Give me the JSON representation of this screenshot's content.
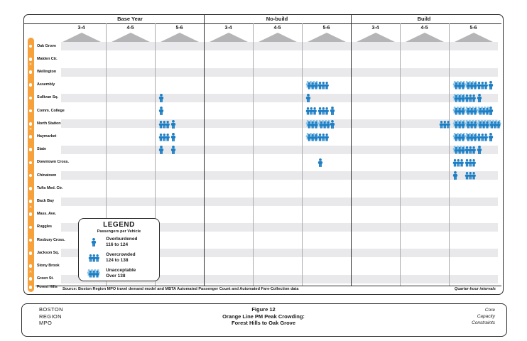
{
  "header": {
    "sections": [
      "Base Year",
      "No-build",
      "Build"
    ],
    "intervals": [
      "3-4",
      "4-5",
      "5-6"
    ]
  },
  "stations": [
    {
      "name": "Oak Grove",
      "commuter_rail_transfer": false
    },
    {
      "name": "Malden Ctr.",
      "commuter_rail_transfer": true
    },
    {
      "name": "Wellington",
      "commuter_rail_transfer": false
    },
    {
      "name": "Assembly",
      "commuter_rail_transfer": false
    },
    {
      "name": "Sullivan Sq.",
      "commuter_rail_transfer": false
    },
    {
      "name": "Comm. College",
      "commuter_rail_transfer": false
    },
    {
      "name": "North Station",
      "commuter_rail_transfer": true
    },
    {
      "name": "Haymarket",
      "commuter_rail_transfer": false
    },
    {
      "name": "State",
      "commuter_rail_transfer": false
    },
    {
      "name": "Downtown Cross.",
      "commuter_rail_transfer": false
    },
    {
      "name": "Chinatown",
      "commuter_rail_transfer": false
    },
    {
      "name": "Tufts Med. Ctr.",
      "commuter_rail_transfer": false
    },
    {
      "name": "Back Bay",
      "commuter_rail_transfer": true
    },
    {
      "name": "Mass. Ave.",
      "commuter_rail_transfer": false
    },
    {
      "name": "Ruggles",
      "commuter_rail_transfer": false
    },
    {
      "name": "Roxbury Cross.",
      "commuter_rail_transfer": false
    },
    {
      "name": "Jackson Sq.",
      "commuter_rail_transfer": false
    },
    {
      "name": "Stony Brook",
      "commuter_rail_transfer": true
    },
    {
      "name": "Green St.",
      "commuter_rail_transfer": false
    },
    {
      "name": "Forest Hills",
      "commuter_rail_transfer": false
    }
  ],
  "legend": {
    "title": "LEGEND",
    "subtitle": "Passengers per Vehicle",
    "items": [
      {
        "icon": "overburdened-icon",
        "code": "O",
        "label": "Overburdened",
        "range": "116 to 124"
      },
      {
        "icon": "overcrowded-icon",
        "code": "C",
        "label": "Overcrowded",
        "range": "124 to 138"
      },
      {
        "icon": "unacceptable-icon",
        "code": "U",
        "label": "Unacceptable",
        "range": "Over 138"
      }
    ]
  },
  "notes": {
    "source": "Source: Boston Region MPO travel demand model and MBTA Automated Passenger Count and Automated Fare-Collection data",
    "interval": "Quarter-hour intervals"
  },
  "footer": {
    "org_lines": [
      "BOSTON",
      "REGION",
      "MPO"
    ],
    "figure_label": "Figure 12",
    "title_line1": "Orange Line PM Peak Crowding:",
    "title_line2": "Forest Hills to Oak Grove",
    "right_lines": [
      "Core",
      "Capacity",
      "Constraints"
    ]
  },
  "colors": {
    "icon_blue": "#1e7fc4",
    "icon_light_blue": "#8ac4e8",
    "stripe_gray": "#e9e9eb",
    "triangle_gray": "#b5b5b7",
    "line_orange": "#f6a13c"
  },
  "chart_data": {
    "type": "table",
    "title": "Orange Line PM Peak Crowding: Forest Hills to Oak Grove",
    "description": "Matrix of PM peak crowding by station (rows) and scenario/hour (columns). Each cell shows up to four quarter-hour interval icons; codes: O=Overburdened (116 to 124 passengers per vehicle), C=Overcrowded (124 to 138), U=Unacceptable (Over 138), -=below threshold.",
    "scenarios": [
      "Base Year",
      "No-build",
      "Build"
    ],
    "hour_intervals": [
      "3-4",
      "4-5",
      "5-6"
    ],
    "cells": [
      {
        "scenario": "Base Year",
        "interval": "5-6",
        "station": "Sullivan Sq.",
        "quarters": [
          "O"
        ]
      },
      {
        "scenario": "Base Year",
        "interval": "5-6",
        "station": "Comm. College",
        "quarters": [
          "O"
        ]
      },
      {
        "scenario": "Base Year",
        "interval": "5-6",
        "station": "North Station",
        "quarters": [
          "C",
          "O"
        ]
      },
      {
        "scenario": "Base Year",
        "interval": "5-6",
        "station": "Haymarket",
        "quarters": [
          "C",
          "O"
        ]
      },
      {
        "scenario": "Base Year",
        "interval": "5-6",
        "station": "State",
        "quarters": [
          "O",
          "O"
        ]
      },
      {
        "scenario": "No-build",
        "interval": "5-6",
        "station": "Assembly",
        "quarters": [
          "U",
          "C"
        ]
      },
      {
        "scenario": "No-build",
        "interval": "5-6",
        "station": "Sullivan Sq.",
        "quarters": [
          "O"
        ]
      },
      {
        "scenario": "No-build",
        "interval": "5-6",
        "station": "Comm. College",
        "quarters": [
          "C",
          "C",
          "O"
        ]
      },
      {
        "scenario": "No-build",
        "interval": "5-6",
        "station": "North Station",
        "quarters": [
          "U",
          "U",
          "O"
        ]
      },
      {
        "scenario": "No-build",
        "interval": "5-6",
        "station": "Haymarket",
        "quarters": [
          "U",
          "C"
        ]
      },
      {
        "scenario": "No-build",
        "interval": "5-6",
        "station": "Downtown Cross.",
        "quarters": [
          "-",
          "O"
        ]
      },
      {
        "scenario": "Build",
        "interval": "4-5",
        "station": "North Station",
        "quarters": [
          "-",
          "-",
          "-",
          "C"
        ]
      },
      {
        "scenario": "Build",
        "interval": "5-6",
        "station": "Assembly",
        "quarters": [
          "U",
          "U",
          "C",
          "O"
        ]
      },
      {
        "scenario": "Build",
        "interval": "5-6",
        "station": "Sullivan Sq.",
        "quarters": [
          "U",
          "C",
          "O"
        ]
      },
      {
        "scenario": "Build",
        "interval": "5-6",
        "station": "Comm. College",
        "quarters": [
          "U",
          "U",
          "U",
          "O"
        ]
      },
      {
        "scenario": "Build",
        "interval": "5-6",
        "station": "North Station",
        "quarters": [
          "U",
          "U",
          "U",
          "U"
        ]
      },
      {
        "scenario": "Build",
        "interval": "5-6",
        "station": "Haymarket",
        "quarters": [
          "U",
          "U",
          "C",
          "O"
        ]
      },
      {
        "scenario": "Build",
        "interval": "5-6",
        "station": "State",
        "quarters": [
          "U",
          "C",
          "O"
        ]
      },
      {
        "scenario": "Build",
        "interval": "5-6",
        "station": "Downtown Cross.",
        "quarters": [
          "C",
          "C"
        ]
      },
      {
        "scenario": "Build",
        "interval": "5-6",
        "station": "Chinatown",
        "quarters": [
          "O",
          "C"
        ]
      }
    ]
  }
}
